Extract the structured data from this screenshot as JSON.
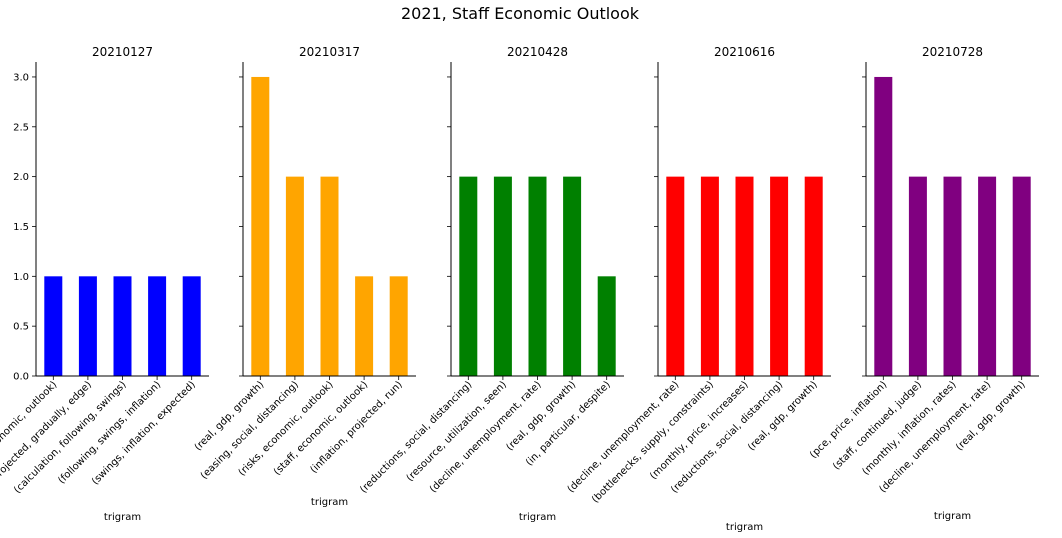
{
  "figure_title": "2021, Staff Economic Outlook",
  "chart_data": [
    {
      "type": "bar",
      "title": "20210127",
      "xlabel": "trigram",
      "ylabel": "",
      "ylim": [
        0,
        3.15
      ],
      "yticks": [
        "0.0",
        "0.5",
        "1.0",
        "1.5",
        "2.0",
        "2.5",
        "3.0"
      ],
      "color": "#0000ff",
      "categories": [
        "(staff, economic, outlook)",
        "(projected, gradually, edge)",
        "(calculation, following, swings)",
        "(following, swings, inflation)",
        "(swings, inflation, expected)"
      ],
      "values": [
        1,
        1,
        1,
        1,
        1
      ]
    },
    {
      "type": "bar",
      "title": "20210317",
      "xlabel": "trigram",
      "ylabel": "",
      "ylim": [
        0,
        3.15
      ],
      "color": "#ffa500",
      "categories": [
        "(real, gdp, growth)",
        "(easing, social, distancing)",
        "(risks, economic, outlook)",
        "(staff, economic, outlook)",
        "(inflation, projected, run)"
      ],
      "values": [
        3,
        2,
        2,
        1,
        1
      ]
    },
    {
      "type": "bar",
      "title": "20210428",
      "xlabel": "trigram",
      "ylabel": "",
      "ylim": [
        0,
        3.15
      ],
      "color": "#008000",
      "categories": [
        "(reductions, social, distancing)",
        "(resource, utilization, seen)",
        "(decline, unemployment, rate)",
        "(real, gdp, growth)",
        "(in, particular, despite)"
      ],
      "values": [
        2,
        2,
        2,
        2,
        1
      ]
    },
    {
      "type": "bar",
      "title": "20210616",
      "xlabel": "trigram",
      "ylabel": "",
      "ylim": [
        0,
        3.15
      ],
      "color": "#ff0000",
      "categories": [
        "(decline, unemployment, rate)",
        "(bottlenecks, supply, constraints)",
        "(monthly, price, increases)",
        "(reductions, social, distancing)",
        "(real, gdp, growth)"
      ],
      "values": [
        2,
        2,
        2,
        2,
        2
      ]
    },
    {
      "type": "bar",
      "title": "20210728",
      "xlabel": "trigram",
      "ylabel": "",
      "ylim": [
        0,
        3.15
      ],
      "color": "#800080",
      "categories": [
        "(pce, price, inflation)",
        "(staff, continued, judge)",
        "(monthly, inflation, rates)",
        "(decline, unemployment, rate)",
        "(real, gdp, growth)"
      ],
      "values": [
        3,
        2,
        2,
        2,
        2
      ]
    }
  ]
}
